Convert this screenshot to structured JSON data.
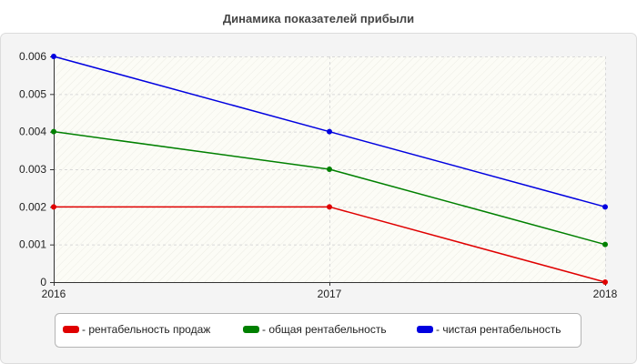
{
  "chart_data": {
    "type": "line",
    "title": "Динамика показателей прибыли",
    "xlabel": "",
    "ylabel": "",
    "categories": [
      "2016",
      "2017",
      "2018"
    ],
    "ylim": [
      0,
      0.006
    ],
    "yticks": [
      "0",
      "0.001",
      "0.002",
      "0.003",
      "0.004",
      "0.005",
      "0.006"
    ],
    "grid": true,
    "legend_position": "bottom",
    "series": [
      {
        "name": "- рентабельность продаж",
        "color": "#e00000",
        "values": [
          0.002,
          0.002,
          0
        ]
      },
      {
        "name": "- общая рентабельность",
        "color": "#008000",
        "values": [
          0.004,
          0.003,
          0.001
        ]
      },
      {
        "name": "- чистая рентабельность",
        "color": "#0000e0",
        "values": [
          0.006,
          0.004,
          0.002
        ]
      }
    ],
    "overlap_color": "#808000"
  }
}
